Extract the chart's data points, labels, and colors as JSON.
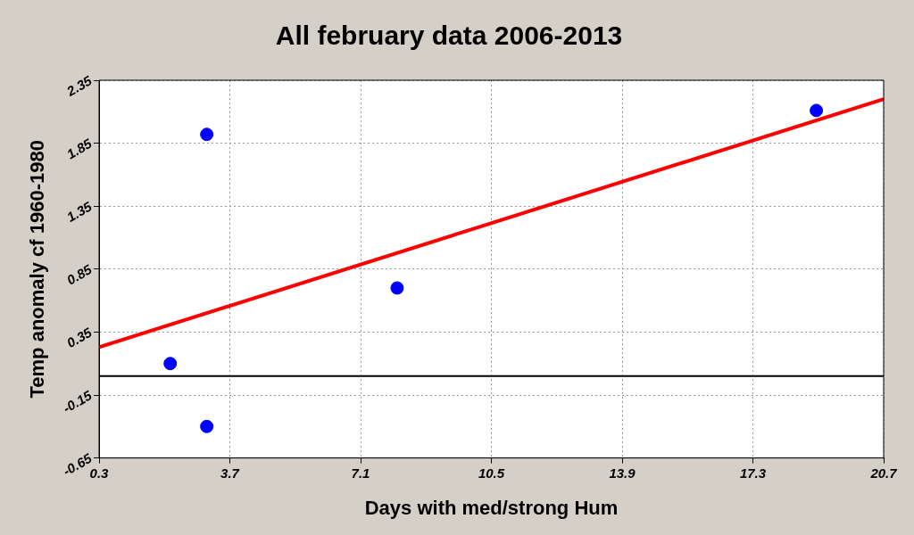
{
  "chart_data": {
    "type": "scatter",
    "title": "All february data 2006-2013",
    "xlabel": "Days with med/strong Hum",
    "ylabel": "Temp anomaly cf 1960-1980",
    "series": [
      {
        "marker": "circle",
        "color": "#0000ff",
        "x": [
          2.15,
          3.1,
          3.1,
          8.05,
          18.95
        ],
        "values": [
          0.1,
          1.92,
          -0.4,
          0.7,
          2.11
        ]
      },
      {
        "type": "line",
        "color": "#ff0000",
        "x": [
          0.3,
          20.7
        ],
        "values": [
          0.23,
          2.2
        ]
      }
    ],
    "xlim": [
      0.3,
      20.7
    ],
    "xticks": [
      0.3,
      3.7,
      7.1,
      10.5,
      13.9,
      17.3,
      20.7
    ],
    "ylim": [
      -0.65,
      2.35
    ],
    "yticks": [
      -0.65,
      -0.15,
      0.35,
      0.85,
      1.35,
      1.85,
      2.35
    ],
    "ref_lines": [
      {
        "axis": "y",
        "value": 0,
        "color": "#000000"
      }
    ],
    "grid": true,
    "legend": false
  }
}
